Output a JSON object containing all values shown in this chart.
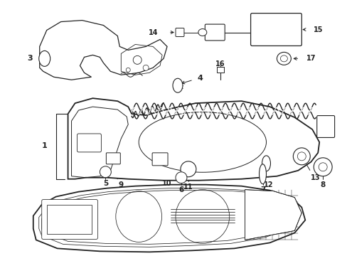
{
  "bg_color": "#ffffff",
  "line_color": "#222222",
  "figsize": [
    4.89,
    3.6
  ],
  "dpi": 100,
  "lw_main": 0.9,
  "lw_thick": 1.3,
  "lw_thin": 0.55,
  "label_fontsize": 7.5
}
